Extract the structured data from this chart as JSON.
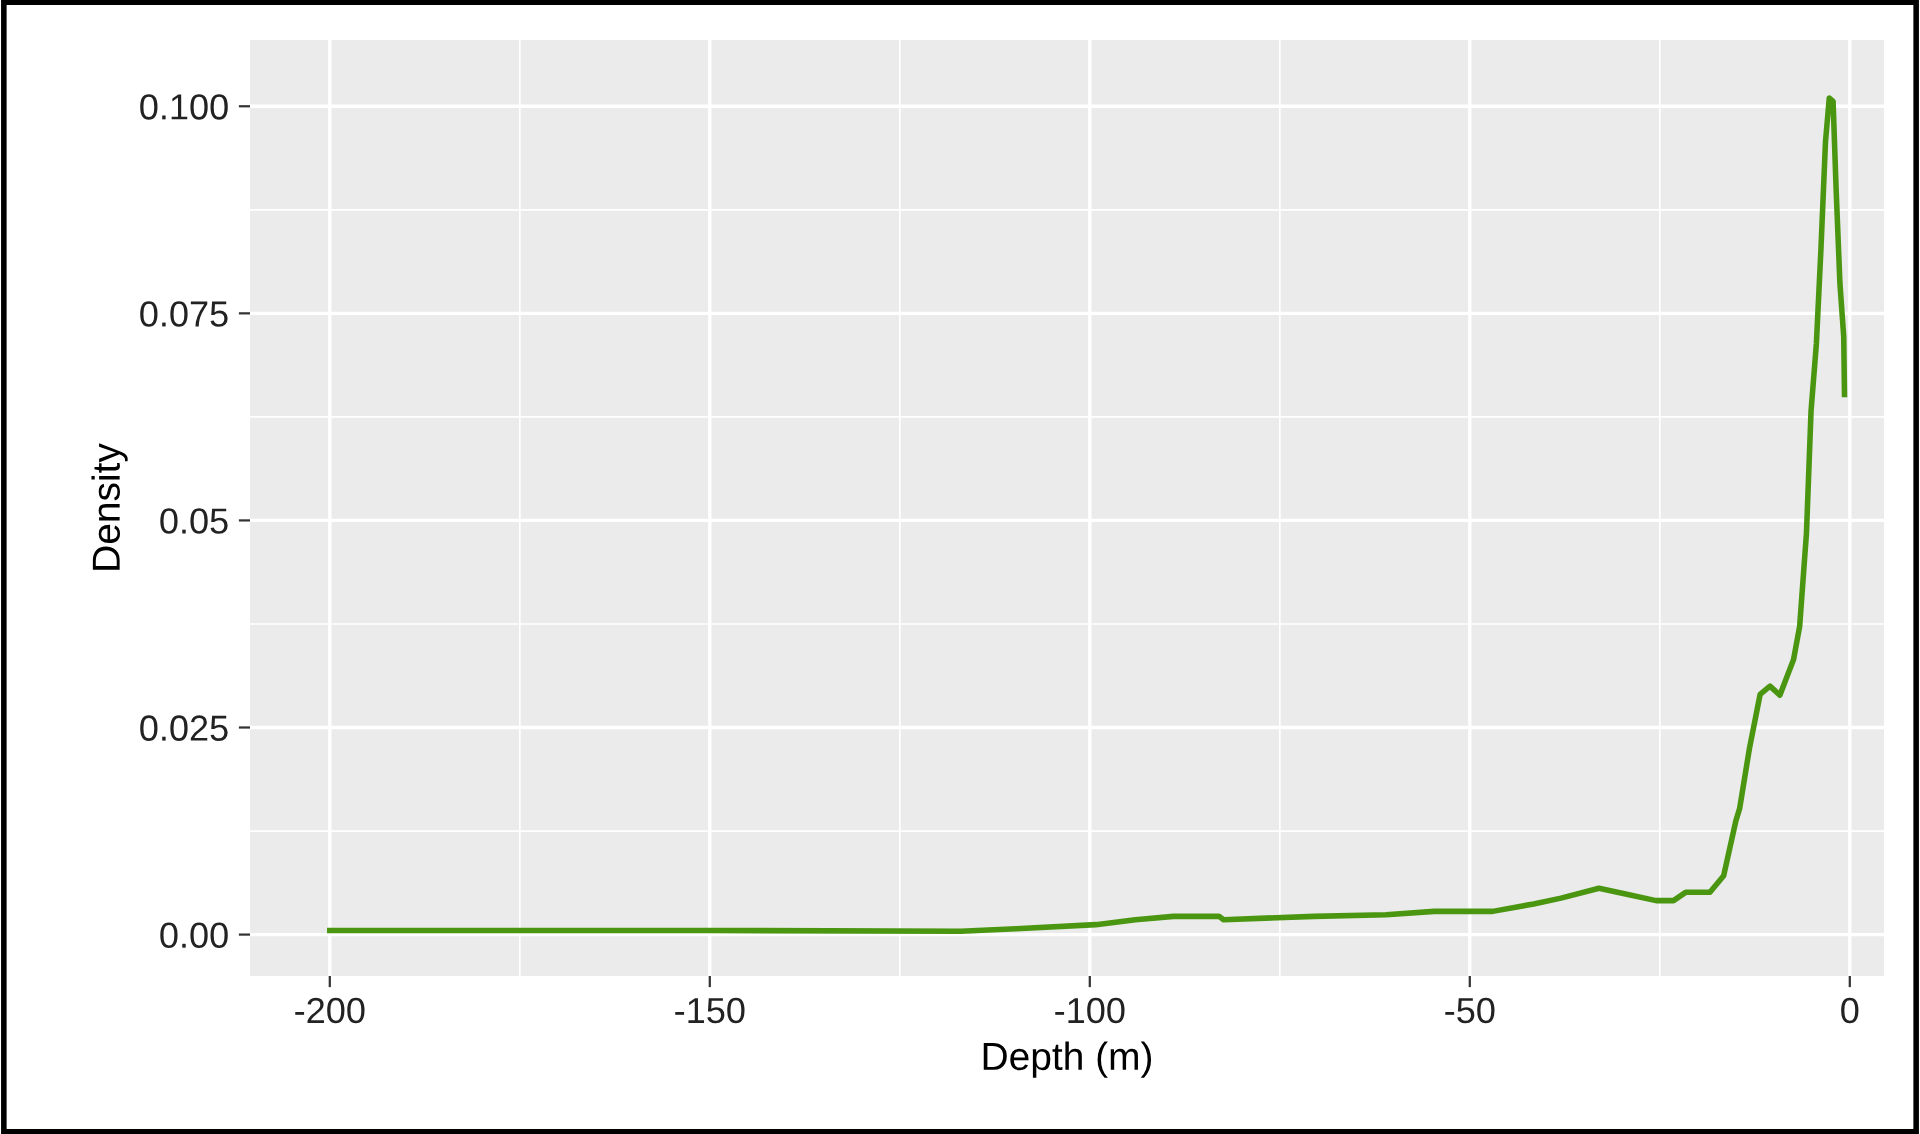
{
  "chart_data": {
    "type": "line",
    "xlabel": "Depth (m)",
    "ylabel": "Density",
    "x": [
      -200,
      -150,
      -117,
      -109.7,
      -99.2,
      -94,
      -89,
      -83,
      -82.4,
      -70.5,
      -61,
      -54.7,
      -47,
      -41.6,
      -38,
      -33,
      -29.5,
      -25.5,
      -23.2,
      -21.6,
      -18.4,
      -16.6,
      -15,
      -14.5,
      -13.2,
      -11.8,
      -10.5,
      -9.2,
      -7.4,
      -6.6,
      -5.7,
      -5.1,
      -4.4,
      -3.8,
      -3.2,
      -2.7,
      -2.2,
      -1.8,
      -1.3,
      -0.8,
      -0.7
    ],
    "series": [
      {
        "color": "#4b9611",
        "values": [
          0.0005,
          0.0005,
          0.0004,
          0.0007,
          0.0012,
          0.0018,
          0.0022,
          0.0022,
          0.0018,
          0.0022,
          0.0024,
          0.0028,
          0.0028,
          0.0037,
          0.0044,
          0.0056,
          0.0049,
          0.0041,
          0.0041,
          0.0051,
          0.0051,
          0.0071,
          0.0137,
          0.0152,
          0.0225,
          0.029,
          0.03,
          0.0289,
          0.0332,
          0.0372,
          0.0485,
          0.0632,
          0.0713,
          0.0827,
          0.0957,
          0.101,
          0.1006,
          0.09,
          0.0786,
          0.0722,
          0.0652
        ]
      }
    ],
    "xlim": [
      -210.5,
      4.5
    ],
    "ylim": [
      -0.005,
      0.108
    ],
    "xticks": [
      -200,
      -150,
      -100,
      -50,
      0
    ],
    "yticks": [
      {
        "value": 0,
        "label": "0.00"
      },
      0.025,
      0.05,
      0.075,
      {
        "value": 0.1,
        "label": "0.100"
      }
    ],
    "grid": true,
    "legend": false,
    "marker": "none",
    "line_style": "solid"
  }
}
